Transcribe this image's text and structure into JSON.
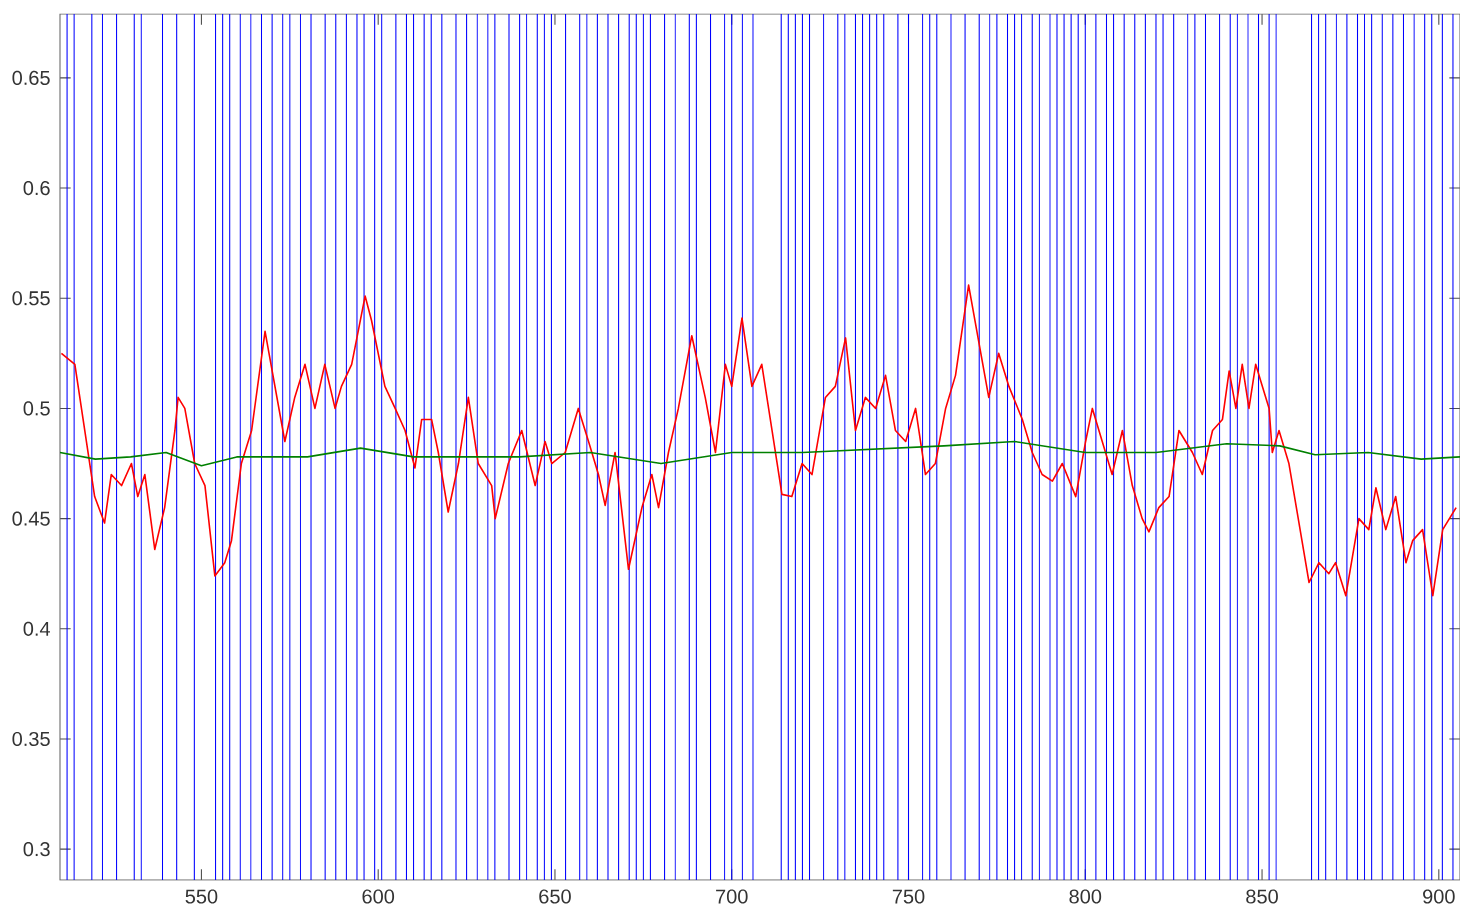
{
  "chart_data": {
    "type": "line",
    "xlim": [
      510,
      906
    ],
    "ylim": [
      0.286,
      0.679
    ],
    "xticks": [
      550,
      600,
      650,
      700,
      750,
      800,
      850,
      900
    ],
    "yticks": [
      0.3,
      0.35,
      0.4,
      0.45,
      0.5,
      0.55,
      0.6,
      0.65
    ],
    "grid": false,
    "marker": "none",
    "line_style": "solid",
    "series": [
      {
        "color": "#ff0000",
        "x": [
          510.4,
          514.2,
          517,
          519.8,
          522.6,
          524.5,
          527.4,
          530.2,
          532,
          534,
          536.8,
          539.6,
          542.5,
          543.4,
          545.3,
          548.1,
          551,
          553.8,
          556.6,
          558.5,
          561.3,
          564.2,
          568,
          570.8,
          573.6,
          576.4,
          579.3,
          582.1,
          584.9,
          587.8,
          589.6,
          592.5,
          596.3,
          598.1,
          601.9,
          604.8,
          607.6,
          610.4,
          612.3,
          615.1,
          617,
          619.8,
          622.7,
          625.5,
          628.3,
          632.1,
          633.1,
          636.8,
          640.6,
          644.4,
          647.2,
          649.1,
          652.9,
          656.6,
          659.5,
          662.3,
          664.2,
          667,
          670.8,
          674.6,
          677.4,
          679.3,
          682.1,
          684.9,
          688.7,
          692.5,
          695.4,
          698.2,
          700,
          702.9,
          705.7,
          708.5,
          711.4,
          714.2,
          717,
          719.9,
          722.7,
          726.5,
          729.3,
          732.2,
          735,
          737.8,
          740.7,
          743.5,
          746.3,
          749.2,
          752,
          754.8,
          757.6,
          760.5,
          763.3,
          767,
          769.9,
          772.7,
          775.5,
          778.4,
          782.2,
          785,
          787.8,
          790.7,
          793.5,
          797.3,
          800.1,
          802,
          804.8,
          807.6,
          810.5,
          813.3,
          816.1,
          818,
          820.8,
          823.7,
          826.5,
          830.3,
          833.1,
          836,
          838.8,
          840.7,
          842.6,
          844.4,
          846.3,
          848.2,
          850.1,
          852,
          852.9,
          854.8,
          857.6,
          863.3,
          866.1,
          868.9,
          870.8,
          873.7,
          877.4,
          880.2,
          882.2,
          885,
          887.8,
          890.7,
          892.6,
          895.4,
          898.3,
          901.1,
          904.9
        ],
        "values": [
          0.525,
          0.52,
          0.49,
          0.46,
          0.448,
          0.47,
          0.465,
          0.475,
          0.46,
          0.47,
          0.436,
          0.455,
          0.49,
          0.505,
          0.5,
          0.475,
          0.465,
          0.424,
          0.43,
          0.44,
          0.475,
          0.49,
          0.535,
          0.51,
          0.485,
          0.505,
          0.52,
          0.5,
          0.52,
          0.5,
          0.51,
          0.52,
          0.551,
          0.54,
          0.51,
          0.5,
          0.49,
          0.473,
          0.495,
          0.495,
          0.48,
          0.453,
          0.475,
          0.505,
          0.475,
          0.465,
          0.45,
          0.475,
          0.49,
          0.465,
          0.485,
          0.475,
          0.48,
          0.5,
          0.485,
          0.47,
          0.456,
          0.48,
          0.427,
          0.455,
          0.47,
          0.455,
          0.48,
          0.5,
          0.533,
          0.505,
          0.48,
          0.52,
          0.51,
          0.541,
          0.51,
          0.52,
          0.49,
          0.461,
          0.46,
          0.475,
          0.47,
          0.505,
          0.51,
          0.532,
          0.49,
          0.505,
          0.5,
          0.515,
          0.49,
          0.485,
          0.5,
          0.47,
          0.475,
          0.5,
          0.515,
          0.556,
          0.53,
          0.505,
          0.525,
          0.51,
          0.495,
          0.48,
          0.47,
          0.467,
          0.475,
          0.46,
          0.485,
          0.5,
          0.485,
          0.47,
          0.49,
          0.465,
          0.45,
          0.444,
          0.455,
          0.46,
          0.49,
          0.48,
          0.47,
          0.49,
          0.495,
          0.517,
          0.5,
          0.52,
          0.5,
          0.52,
          0.51,
          0.5,
          0.48,
          0.49,
          0.475,
          0.421,
          0.43,
          0.425,
          0.43,
          0.415,
          0.45,
          0.445,
          0.464,
          0.445,
          0.46,
          0.43,
          0.44,
          0.445,
          0.415,
          0.445,
          0.455
        ]
      },
      {
        "color": "#008000",
        "x": [
          510,
          520,
          530,
          540,
          550,
          560,
          580,
          595,
          610,
          640,
          660,
          680,
          700,
          720,
          760,
          780,
          800,
          820,
          840,
          855,
          865,
          880,
          895,
          906
        ],
        "values": [
          0.48,
          0.477,
          0.478,
          0.48,
          0.474,
          0.478,
          0.478,
          0.482,
          0.478,
          0.478,
          0.48,
          0.475,
          0.48,
          0.48,
          0.483,
          0.485,
          0.48,
          0.48,
          0.484,
          0.483,
          0.479,
          0.48,
          0.477,
          0.478
        ]
      }
    ],
    "ref_lines": [
      {
        "axis": "x",
        "value": 512,
        "color": "#0000ff"
      },
      {
        "axis": "x",
        "value": 514,
        "color": "#0000ff"
      },
      {
        "axis": "x",
        "value": 519,
        "color": "#0000ff"
      },
      {
        "axis": "x",
        "value": 522,
        "color": "#0000ff"
      },
      {
        "axis": "x",
        "value": 526,
        "color": "#0000ff"
      },
      {
        "axis": "x",
        "value": 531,
        "color": "#0000ff"
      },
      {
        "axis": "x",
        "value": 533,
        "color": "#0000ff"
      },
      {
        "axis": "x",
        "value": 539,
        "color": "#0000ff"
      },
      {
        "axis": "x",
        "value": 543,
        "color": "#0000ff"
      },
      {
        "axis": "x",
        "value": 548,
        "color": "#0000ff"
      },
      {
        "axis": "x",
        "value": 554,
        "color": "#0000ff"
      },
      {
        "axis": "x",
        "value": 556,
        "color": "#0000ff"
      },
      {
        "axis": "x",
        "value": 558,
        "color": "#0000ff"
      },
      {
        "axis": "x",
        "value": 561,
        "color": "#0000ff"
      },
      {
        "axis": "x",
        "value": 564,
        "color": "#0000ff"
      },
      {
        "axis": "x",
        "value": 567,
        "color": "#0000ff"
      },
      {
        "axis": "x",
        "value": 570,
        "color": "#0000ff"
      },
      {
        "axis": "x",
        "value": 573,
        "color": "#0000ff"
      },
      {
        "axis": "x",
        "value": 575,
        "color": "#0000ff"
      },
      {
        "axis": "x",
        "value": 578,
        "color": "#0000ff"
      },
      {
        "axis": "x",
        "value": 581,
        "color": "#0000ff"
      },
      {
        "axis": "x",
        "value": 585,
        "color": "#0000ff"
      },
      {
        "axis": "x",
        "value": 588,
        "color": "#0000ff"
      },
      {
        "axis": "x",
        "value": 591,
        "color": "#0000ff"
      },
      {
        "axis": "x",
        "value": 594,
        "color": "#0000ff"
      },
      {
        "axis": "x",
        "value": 596,
        "color": "#0000ff"
      },
      {
        "axis": "x",
        "value": 599,
        "color": "#0000ff"
      },
      {
        "axis": "x",
        "value": 601,
        "color": "#0000ff"
      },
      {
        "axis": "x",
        "value": 605,
        "color": "#0000ff"
      },
      {
        "axis": "x",
        "value": 608,
        "color": "#0000ff"
      },
      {
        "axis": "x",
        "value": 610,
        "color": "#0000ff"
      },
      {
        "axis": "x",
        "value": 613,
        "color": "#0000ff"
      },
      {
        "axis": "x",
        "value": 615,
        "color": "#0000ff"
      },
      {
        "axis": "x",
        "value": 618,
        "color": "#0000ff"
      },
      {
        "axis": "x",
        "value": 622,
        "color": "#0000ff"
      },
      {
        "axis": "x",
        "value": 625,
        "color": "#0000ff"
      },
      {
        "axis": "x",
        "value": 628,
        "color": "#0000ff"
      },
      {
        "axis": "x",
        "value": 631,
        "color": "#0000ff"
      },
      {
        "axis": "x",
        "value": 633,
        "color": "#0000ff"
      },
      {
        "axis": "x",
        "value": 637,
        "color": "#0000ff"
      },
      {
        "axis": "x",
        "value": 640,
        "color": "#0000ff"
      },
      {
        "axis": "x",
        "value": 642,
        "color": "#0000ff"
      },
      {
        "axis": "x",
        "value": 645,
        "color": "#0000ff"
      },
      {
        "axis": "x",
        "value": 647,
        "color": "#0000ff"
      },
      {
        "axis": "x",
        "value": 649,
        "color": "#0000ff"
      },
      {
        "axis": "x",
        "value": 653,
        "color": "#0000ff"
      },
      {
        "axis": "x",
        "value": 657,
        "color": "#0000ff"
      },
      {
        "axis": "x",
        "value": 659,
        "color": "#0000ff"
      },
      {
        "axis": "x",
        "value": 662,
        "color": "#0000ff"
      },
      {
        "axis": "x",
        "value": 665,
        "color": "#0000ff"
      },
      {
        "axis": "x",
        "value": 668,
        "color": "#0000ff"
      },
      {
        "axis": "x",
        "value": 671,
        "color": "#0000ff"
      },
      {
        "axis": "x",
        "value": 673,
        "color": "#0000ff"
      },
      {
        "axis": "x",
        "value": 675,
        "color": "#0000ff"
      },
      {
        "axis": "x",
        "value": 677,
        "color": "#0000ff"
      },
      {
        "axis": "x",
        "value": 681,
        "color": "#0000ff"
      },
      {
        "axis": "x",
        "value": 684,
        "color": "#0000ff"
      },
      {
        "axis": "x",
        "value": 688,
        "color": "#0000ff"
      },
      {
        "axis": "x",
        "value": 690,
        "color": "#0000ff"
      },
      {
        "axis": "x",
        "value": 694,
        "color": "#0000ff"
      },
      {
        "axis": "x",
        "value": 698,
        "color": "#0000ff"
      },
      {
        "axis": "x",
        "value": 700,
        "color": "#0000ff"
      },
      {
        "axis": "x",
        "value": 703,
        "color": "#0000ff"
      },
      {
        "axis": "x",
        "value": 706,
        "color": "#0000ff"
      },
      {
        "axis": "x",
        "value": 714,
        "color": "#0000ff"
      },
      {
        "axis": "x",
        "value": 716,
        "color": "#0000ff"
      },
      {
        "axis": "x",
        "value": 718,
        "color": "#0000ff"
      },
      {
        "axis": "x",
        "value": 720,
        "color": "#0000ff"
      },
      {
        "axis": "x",
        "value": 722,
        "color": "#0000ff"
      },
      {
        "axis": "x",
        "value": 726,
        "color": "#0000ff"
      },
      {
        "axis": "x",
        "value": 730,
        "color": "#0000ff"
      },
      {
        "axis": "x",
        "value": 732,
        "color": "#0000ff"
      },
      {
        "axis": "x",
        "value": 735,
        "color": "#0000ff"
      },
      {
        "axis": "x",
        "value": 737,
        "color": "#0000ff"
      },
      {
        "axis": "x",
        "value": 739,
        "color": "#0000ff"
      },
      {
        "axis": "x",
        "value": 741,
        "color": "#0000ff"
      },
      {
        "axis": "x",
        "value": 743,
        "color": "#0000ff"
      },
      {
        "axis": "x",
        "value": 747,
        "color": "#0000ff"
      },
      {
        "axis": "x",
        "value": 750,
        "color": "#0000ff"
      },
      {
        "axis": "x",
        "value": 754,
        "color": "#0000ff"
      },
      {
        "axis": "x",
        "value": 756,
        "color": "#0000ff"
      },
      {
        "axis": "x",
        "value": 758,
        "color": "#0000ff"
      },
      {
        "axis": "x",
        "value": 762,
        "color": "#0000ff"
      },
      {
        "axis": "x",
        "value": 766,
        "color": "#0000ff"
      },
      {
        "axis": "x",
        "value": 770,
        "color": "#0000ff"
      },
      {
        "axis": "x",
        "value": 773,
        "color": "#0000ff"
      },
      {
        "axis": "x",
        "value": 775,
        "color": "#0000ff"
      },
      {
        "axis": "x",
        "value": 778,
        "color": "#0000ff"
      },
      {
        "axis": "x",
        "value": 780,
        "color": "#0000ff"
      },
      {
        "axis": "x",
        "value": 782,
        "color": "#0000ff"
      },
      {
        "axis": "x",
        "value": 785,
        "color": "#0000ff"
      },
      {
        "axis": "x",
        "value": 787,
        "color": "#0000ff"
      },
      {
        "axis": "x",
        "value": 790,
        "color": "#0000ff"
      },
      {
        "axis": "x",
        "value": 792,
        "color": "#0000ff"
      },
      {
        "axis": "x",
        "value": 794,
        "color": "#0000ff"
      },
      {
        "axis": "x",
        "value": 796,
        "color": "#0000ff"
      },
      {
        "axis": "x",
        "value": 798,
        "color": "#0000ff"
      },
      {
        "axis": "x",
        "value": 800,
        "color": "#0000ff"
      },
      {
        "axis": "x",
        "value": 803,
        "color": "#0000ff"
      },
      {
        "axis": "x",
        "value": 806,
        "color": "#0000ff"
      },
      {
        "axis": "x",
        "value": 808,
        "color": "#0000ff"
      },
      {
        "axis": "x",
        "value": 811,
        "color": "#0000ff"
      },
      {
        "axis": "x",
        "value": 814,
        "color": "#0000ff"
      },
      {
        "axis": "x",
        "value": 817,
        "color": "#0000ff"
      },
      {
        "axis": "x",
        "value": 820,
        "color": "#0000ff"
      },
      {
        "axis": "x",
        "value": 822,
        "color": "#0000ff"
      },
      {
        "axis": "x",
        "value": 825,
        "color": "#0000ff"
      },
      {
        "axis": "x",
        "value": 829,
        "color": "#0000ff"
      },
      {
        "axis": "x",
        "value": 831,
        "color": "#0000ff"
      },
      {
        "axis": "x",
        "value": 834,
        "color": "#0000ff"
      },
      {
        "axis": "x",
        "value": 838,
        "color": "#0000ff"
      },
      {
        "axis": "x",
        "value": 841,
        "color": "#0000ff"
      },
      {
        "axis": "x",
        "value": 843,
        "color": "#0000ff"
      },
      {
        "axis": "x",
        "value": 846,
        "color": "#0000ff"
      },
      {
        "axis": "x",
        "value": 849,
        "color": "#0000ff"
      },
      {
        "axis": "x",
        "value": 852,
        "color": "#0000ff"
      },
      {
        "axis": "x",
        "value": 854,
        "color": "#0000ff"
      },
      {
        "axis": "x",
        "value": 864,
        "color": "#0000ff"
      },
      {
        "axis": "x",
        "value": 866,
        "color": "#0000ff"
      },
      {
        "axis": "x",
        "value": 868,
        "color": "#0000ff"
      },
      {
        "axis": "x",
        "value": 871,
        "color": "#0000ff"
      },
      {
        "axis": "x",
        "value": 874,
        "color": "#0000ff"
      },
      {
        "axis": "x",
        "value": 877,
        "color": "#0000ff"
      },
      {
        "axis": "x",
        "value": 879,
        "color": "#0000ff"
      },
      {
        "axis": "x",
        "value": 881,
        "color": "#0000ff"
      },
      {
        "axis": "x",
        "value": 884,
        "color": "#0000ff"
      },
      {
        "axis": "x",
        "value": 887,
        "color": "#0000ff"
      },
      {
        "axis": "x",
        "value": 890,
        "color": "#0000ff"
      },
      {
        "axis": "x",
        "value": 893,
        "color": "#0000ff"
      },
      {
        "axis": "x",
        "value": 896,
        "color": "#0000ff"
      },
      {
        "axis": "x",
        "value": 898,
        "color": "#0000ff"
      },
      {
        "axis": "x",
        "value": 901,
        "color": "#0000ff"
      },
      {
        "axis": "x",
        "value": 904,
        "color": "#0000ff"
      }
    ]
  }
}
